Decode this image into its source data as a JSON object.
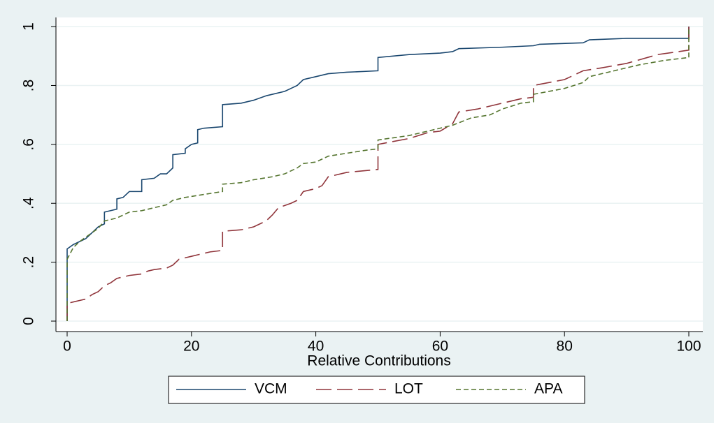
{
  "chart_data": {
    "type": "line",
    "x_label": "Relative Contributions",
    "xlim": [
      -1.8,
      102.25
    ],
    "ylim": [
      -0.0355,
      1.031
    ],
    "xticks": [
      0,
      20,
      40,
      60,
      80,
      100
    ],
    "yticks": [
      0,
      {
        "value": 0.2,
        "label": ".2"
      },
      {
        "value": 0.4,
        "label": ".4"
      },
      {
        "value": 0.6,
        "label": ".6"
      },
      {
        "value": 0.8,
        "label": ".8"
      },
      1
    ],
    "grid": true,
    "legend": "bottom",
    "series": [
      {
        "name": "VCM",
        "color": "#1a476f",
        "dash": "solid",
        "x": [
          0,
          0,
          1,
          2,
          3,
          4,
          5,
          6,
          6,
          8,
          8,
          9,
          10,
          12,
          12,
          14,
          15,
          16,
          17,
          17,
          19,
          19,
          20,
          21,
          21,
          22,
          25,
          25,
          28,
          30,
          32,
          35,
          36,
          37,
          38,
          40,
          42,
          45,
          50,
          50,
          55,
          60,
          62,
          63,
          70,
          75,
          76,
          83,
          84,
          90,
          100,
          100
        ],
        "values": [
          0,
          0.245,
          0.26,
          0.27,
          0.28,
          0.3,
          0.32,
          0.33,
          0.37,
          0.38,
          0.415,
          0.42,
          0.44,
          0.44,
          0.48,
          0.485,
          0.5,
          0.5,
          0.52,
          0.565,
          0.57,
          0.585,
          0.6,
          0.605,
          0.65,
          0.655,
          0.66,
          0.735,
          0.74,
          0.75,
          0.765,
          0.78,
          0.79,
          0.8,
          0.82,
          0.83,
          0.84,
          0.845,
          0.85,
          0.895,
          0.905,
          0.91,
          0.915,
          0.925,
          0.93,
          0.935,
          0.94,
          0.945,
          0.955,
          0.96,
          0.96,
          1
        ]
      },
      {
        "name": "LOT",
        "color": "#90353b",
        "dash": "long",
        "x": [
          0,
          0,
          1,
          2,
          3,
          4,
          5,
          6,
          7,
          8,
          10,
          12,
          13,
          14,
          16,
          17,
          18,
          20,
          22,
          23,
          25,
          25,
          28,
          30,
          32,
          33,
          34,
          36,
          37,
          38,
          40,
          41,
          42,
          45,
          50,
          50,
          55,
          58,
          60,
          62,
          63,
          66,
          70,
          73,
          75,
          75,
          80,
          83,
          86,
          90,
          95,
          100,
          100
        ],
        "values": [
          0,
          0.06,
          0.065,
          0.07,
          0.075,
          0.09,
          0.1,
          0.12,
          0.13,
          0.145,
          0.155,
          0.16,
          0.17,
          0.175,
          0.18,
          0.19,
          0.21,
          0.22,
          0.23,
          0.235,
          0.24,
          0.305,
          0.31,
          0.32,
          0.34,
          0.36,
          0.385,
          0.4,
          0.41,
          0.44,
          0.45,
          0.46,
          0.49,
          0.505,
          0.515,
          0.6,
          0.62,
          0.64,
          0.645,
          0.67,
          0.71,
          0.72,
          0.74,
          0.755,
          0.76,
          0.8,
          0.82,
          0.85,
          0.86,
          0.875,
          0.905,
          0.92,
          1
        ]
      },
      {
        "name": "APA",
        "color": "#55752f",
        "dash": "short",
        "x": [
          0,
          0,
          1,
          2,
          3,
          4,
          5,
          6,
          8,
          9,
          10,
          12,
          14,
          16,
          17,
          19,
          22,
          25,
          25,
          28,
          30,
          33,
          35,
          37,
          38,
          40,
          42,
          45,
          48,
          50,
          50,
          55,
          58,
          60,
          62,
          65,
          68,
          70,
          73,
          75,
          75,
          80,
          83,
          84,
          88,
          92,
          96,
          100,
          100
        ],
        "values": [
          0,
          0.21,
          0.25,
          0.27,
          0.285,
          0.3,
          0.315,
          0.34,
          0.35,
          0.36,
          0.37,
          0.375,
          0.385,
          0.395,
          0.41,
          0.42,
          0.43,
          0.44,
          0.465,
          0.47,
          0.48,
          0.49,
          0.5,
          0.52,
          0.535,
          0.54,
          0.56,
          0.57,
          0.58,
          0.585,
          0.615,
          0.63,
          0.645,
          0.655,
          0.665,
          0.69,
          0.7,
          0.72,
          0.74,
          0.745,
          0.77,
          0.79,
          0.81,
          0.83,
          0.85,
          0.87,
          0.885,
          0.895,
          1
        ]
      }
    ]
  }
}
